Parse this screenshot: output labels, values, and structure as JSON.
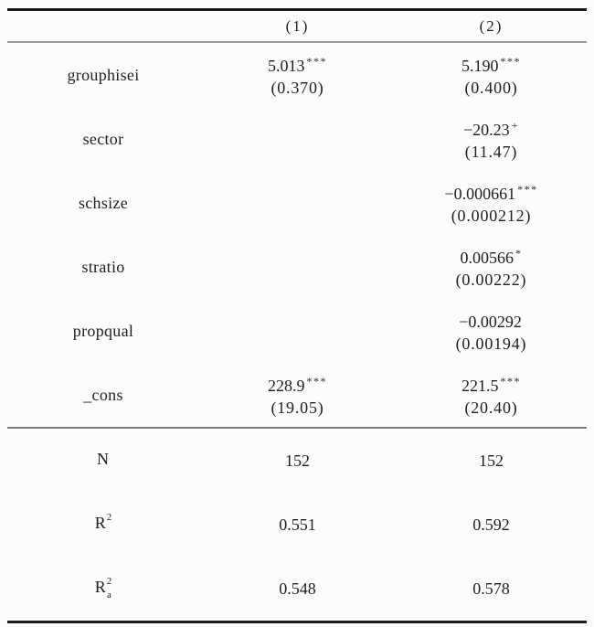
{
  "table": {
    "header": {
      "col1": "(1)",
      "col2": "(2)"
    },
    "rows": [
      {
        "label": "grouphisei",
        "c1": "5.013",
        "c1sup": "***",
        "c1se": "(0.370)",
        "c2": "5.190",
        "c2sup": "***",
        "c2se": "(0.400)"
      },
      {
        "label": "sector",
        "c1": "",
        "c1sup": "",
        "c1se": "",
        "c2": "−20.23",
        "c2sup": "+",
        "c2se": "(11.47)"
      },
      {
        "label": "schsize",
        "c1": "",
        "c1sup": "",
        "c1se": "",
        "c2": "−0.000661",
        "c2sup": "***",
        "c2se": "(0.000212)"
      },
      {
        "label": "stratio",
        "c1": "",
        "c1sup": "",
        "c1se": "",
        "c2": "0.00566",
        "c2sup": "*",
        "c2se": "(0.00222)"
      },
      {
        "label": "propqual",
        "c1": "",
        "c1sup": "",
        "c1se": "",
        "c2": "−0.00292",
        "c2sup": "",
        "c2se": "(0.00194)"
      },
      {
        "label": "_cons",
        "c1": "228.9",
        "c1sup": "***",
        "c1se": "(19.05)",
        "c2": "221.5",
        "c2sup": "***",
        "c2se": "(20.40)"
      }
    ],
    "stats": [
      {
        "label": "N",
        "sup": "",
        "sub": "",
        "v1": "152",
        "v2": "152"
      },
      {
        "label": "R",
        "sup": "2",
        "sub": "",
        "v1": "0.551",
        "v2": "0.592"
      },
      {
        "label": "R",
        "sup": "2",
        "sub": "a",
        "v1": "0.548",
        "v2": "0.578"
      }
    ],
    "colors": {
      "text": "#1f1f1f",
      "rule_dark": "#1a1a1a",
      "rule_gray": "#9a9a9a",
      "rule_mid": "#7a7a7a",
      "background": "#fcfcfb"
    }
  }
}
